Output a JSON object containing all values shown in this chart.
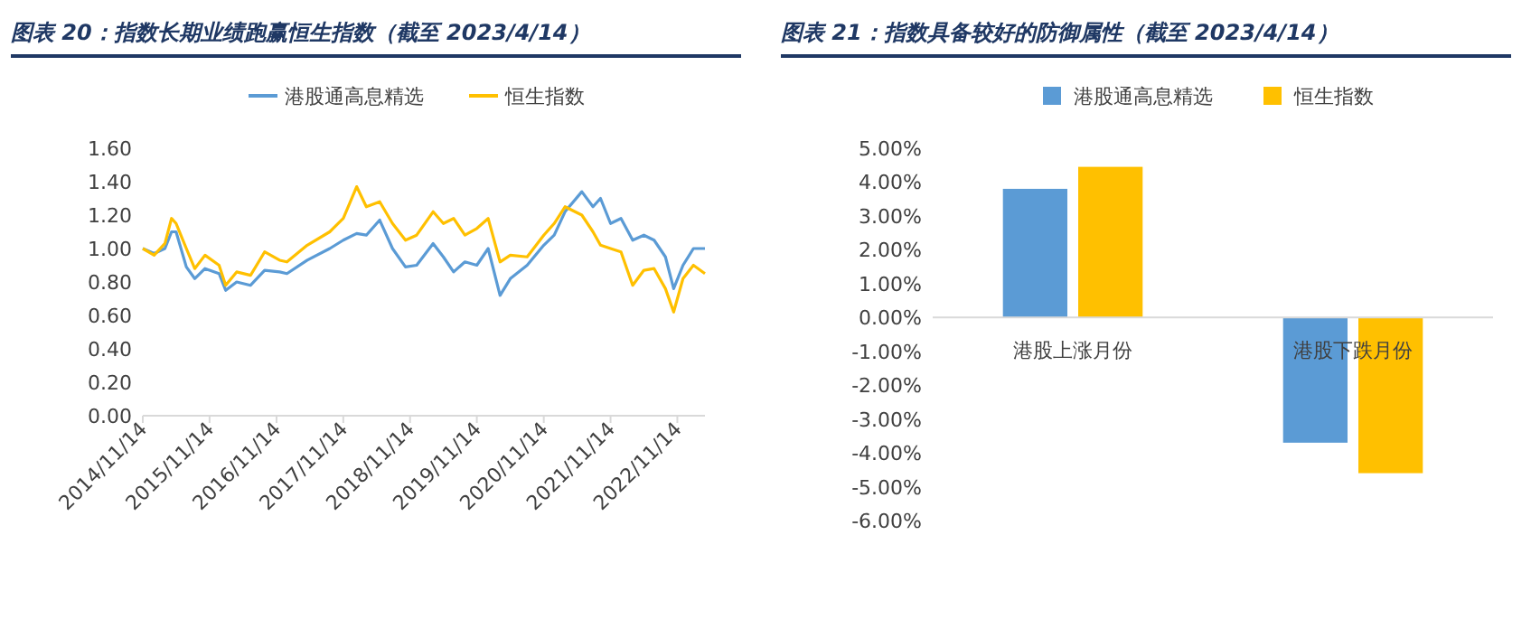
{
  "chart_data": [
    {
      "type": "line",
      "title": "图表 20：指数长期业绩跑赢恒生指数（截至 2023/4/14）",
      "legend": "top",
      "x": [
        "2014-11-14",
        "2015-01-15",
        "2015-03-15",
        "2015-04-20",
        "2015-05-15",
        "2015-07-10",
        "2015-08-25",
        "2015-10-20",
        "2016-01-05",
        "2016-02-10",
        "2016-04-10",
        "2016-06-25",
        "2016-09-10",
        "2016-12-01",
        "2017-01-10",
        "2017-05-01",
        "2017-09-01",
        "2017-11-14",
        "2018-01-26",
        "2018-03-20",
        "2018-06-01",
        "2018-08-10",
        "2018-10-20",
        "2018-12-20",
        "2019-03-20",
        "2019-05-15",
        "2019-07-10",
        "2019-09-10",
        "2019-11-14",
        "2020-01-15",
        "2020-03-20",
        "2020-05-15",
        "2020-08-15",
        "2020-11-14",
        "2021-01-10",
        "2021-03-10",
        "2021-06-10",
        "2021-08-10",
        "2021-09-20",
        "2021-11-14",
        "2022-01-10",
        "2022-03-15",
        "2022-05-15",
        "2022-07-10",
        "2022-09-10",
        "2022-10-25",
        "2022-12-15",
        "2023-02-10",
        "2023-04-14"
      ],
      "ylim": [
        0,
        1.6
      ],
      "yticks": [
        {
          "value": 0,
          "label": "0.00"
        },
        {
          "value": 0.2,
          "label": "0.20"
        },
        {
          "value": 0.4,
          "label": "0.40"
        },
        {
          "value": 0.6,
          "label": "0.60"
        },
        {
          "value": 0.8,
          "label": "0.80"
        },
        {
          "value": 1.0,
          "label": "1.00"
        },
        {
          "value": 1.2,
          "label": "1.20"
        },
        {
          "value": 1.4,
          "label": "1.40"
        },
        {
          "value": 1.6,
          "label": "1.60"
        }
      ],
      "xlim": [
        "2014-11-14",
        "2023-04-14"
      ],
      "xticks": [
        {
          "value": "2014-11-14",
          "label": "2014/11/14"
        },
        {
          "value": "2015-11-14",
          "label": "2015/11/14"
        },
        {
          "value": "2016-11-14",
          "label": "2016/11/14"
        },
        {
          "value": "2017-11-14",
          "label": "2017/11/14"
        },
        {
          "value": "2018-11-14",
          "label": "2018/11/14"
        },
        {
          "value": "2019-11-14",
          "label": "2019/11/14"
        },
        {
          "value": "2020-11-14",
          "label": "2020/11/14"
        },
        {
          "value": "2021-11-14",
          "label": "2021/11/14"
        },
        {
          "value": "2022-11-14",
          "label": "2022/11/14"
        }
      ],
      "series": [
        {
          "name": "港股通高息精选",
          "color": "#5b9bd5",
          "values": [
            1.0,
            0.97,
            1.0,
            1.1,
            1.1,
            0.89,
            0.82,
            0.88,
            0.85,
            0.75,
            0.8,
            0.78,
            0.87,
            0.86,
            0.85,
            0.93,
            1.0,
            1.05,
            1.09,
            1.08,
            1.17,
            1.0,
            0.89,
            0.9,
            1.03,
            0.95,
            0.86,
            0.92,
            0.9,
            1.0,
            0.72,
            0.82,
            0.9,
            1.02,
            1.08,
            1.22,
            1.34,
            1.25,
            1.3,
            1.15,
            1.18,
            1.05,
            1.08,
            1.05,
            0.95,
            0.76,
            0.9,
            1.0,
            1.0
          ]
        },
        {
          "name": "恒生指数",
          "color": "#ffc000",
          "values": [
            1.0,
            0.96,
            1.03,
            1.18,
            1.15,
            1.0,
            0.88,
            0.96,
            0.9,
            0.78,
            0.86,
            0.84,
            0.98,
            0.93,
            0.92,
            1.02,
            1.1,
            1.18,
            1.37,
            1.25,
            1.28,
            1.15,
            1.05,
            1.08,
            1.22,
            1.15,
            1.18,
            1.08,
            1.12,
            1.18,
            0.92,
            0.96,
            0.95,
            1.08,
            1.15,
            1.25,
            1.2,
            1.1,
            1.02,
            1.0,
            0.98,
            0.78,
            0.87,
            0.88,
            0.76,
            0.62,
            0.82,
            0.9,
            0.85
          ]
        }
      ]
    },
    {
      "type": "bar",
      "title": "图表 21：指数具备较好的防御属性（截至 2023/4/14）",
      "legend": "top",
      "categories": [
        "港股上涨月份",
        "港股下跌月份"
      ],
      "ylim": [
        -6,
        5
      ],
      "yticks": [
        {
          "value": -6,
          "label": "-6.00%"
        },
        {
          "value": -5,
          "label": "-5.00%"
        },
        {
          "value": -4,
          "label": "-4.00%"
        },
        {
          "value": -3,
          "label": "-3.00%"
        },
        {
          "value": -2,
          "label": "-2.00%"
        },
        {
          "value": -1,
          "label": "-1.00%"
        },
        {
          "value": 0,
          "label": "0.00%"
        },
        {
          "value": 1,
          "label": "1.00%"
        },
        {
          "value": 2,
          "label": "2.00%"
        },
        {
          "value": 3,
          "label": "3.00%"
        },
        {
          "value": 4,
          "label": "4.00%"
        },
        {
          "value": 5,
          "label": "5.00%"
        }
      ],
      "series": [
        {
          "name": "港股通高息精选",
          "color": "#5b9bd5",
          "values": [
            3.8,
            -3.7
          ]
        },
        {
          "name": "恒生指数",
          "color": "#ffc000",
          "values": [
            4.45,
            -4.6
          ]
        }
      ]
    }
  ]
}
